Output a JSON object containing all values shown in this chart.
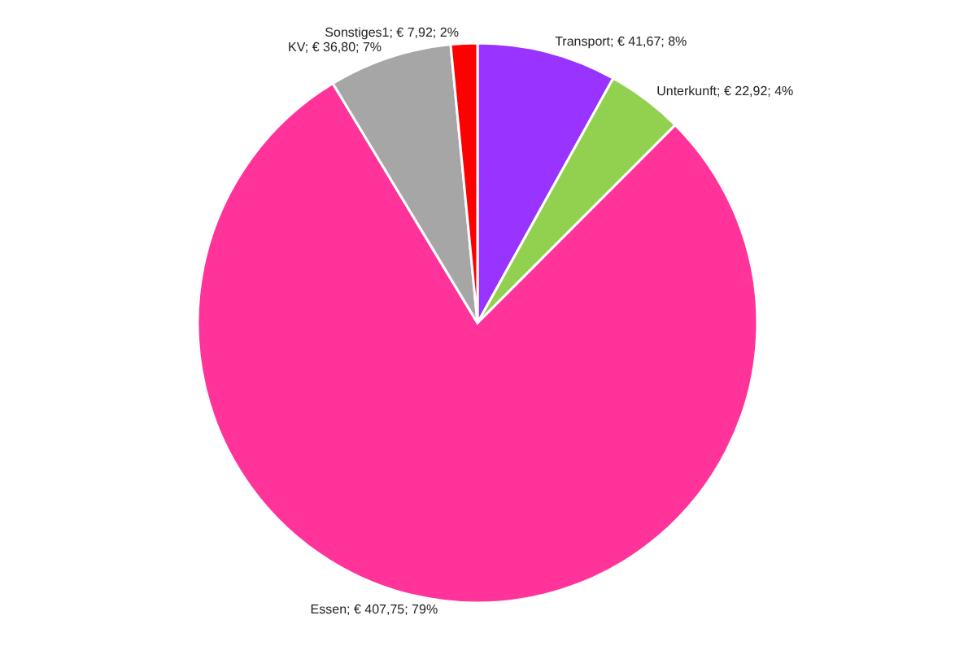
{
  "chart_data": {
    "type": "pie",
    "categories": [
      "Transport",
      "Unterkunft",
      "Essen",
      "KV",
      "Sonstiges1"
    ],
    "values": [
      41.67,
      22.92,
      407.75,
      36.8,
      7.92
    ],
    "colors": [
      "#9933ff",
      "#92d050",
      "#ff3399",
      "#a6a6a6",
      "#ff0000"
    ],
    "value_labels": [
      "€ 41,67;  8%",
      "€ 22,92; 4%",
      "€ 407,75;  79%",
      "€ 36,80;  7%",
      "€ 7,92;  2%"
    ],
    "legend": false
  }
}
